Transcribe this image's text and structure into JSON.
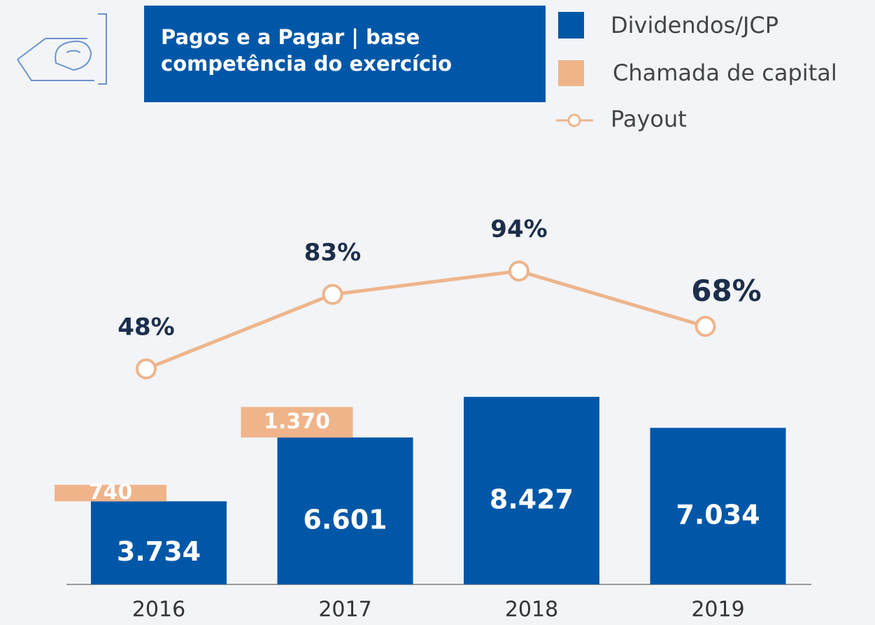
{
  "chart_data": {
    "type": "bar",
    "title": "Pagos e a Pagar | base competência do exercício",
    "categories": [
      "2016",
      "2017",
      "2018",
      "2019"
    ],
    "ylim": [
      0,
      10000
    ],
    "y2lim": [
      0,
      100
    ],
    "series": [
      {
        "name": "Dividendos/JCP",
        "type": "bar",
        "color": "#0057a8",
        "values": [
          3734,
          6601,
          8427,
          7034
        ],
        "value_labels": [
          "3.734",
          "6.601",
          "8.427",
          "7.034"
        ]
      },
      {
        "name": "Chamada de capital",
        "type": "bar",
        "color": "#f0b48a",
        "values": [
          740,
          1370,
          null,
          null
        ],
        "value_labels": [
          "740",
          "1.370",
          null,
          null
        ]
      },
      {
        "name": "Payout",
        "type": "line",
        "axis": "y2",
        "color": "#eeb58c",
        "values": [
          48,
          83,
          94,
          68
        ],
        "value_labels": [
          "48%",
          "83%",
          "94%",
          "68%"
        ]
      }
    ]
  }
}
